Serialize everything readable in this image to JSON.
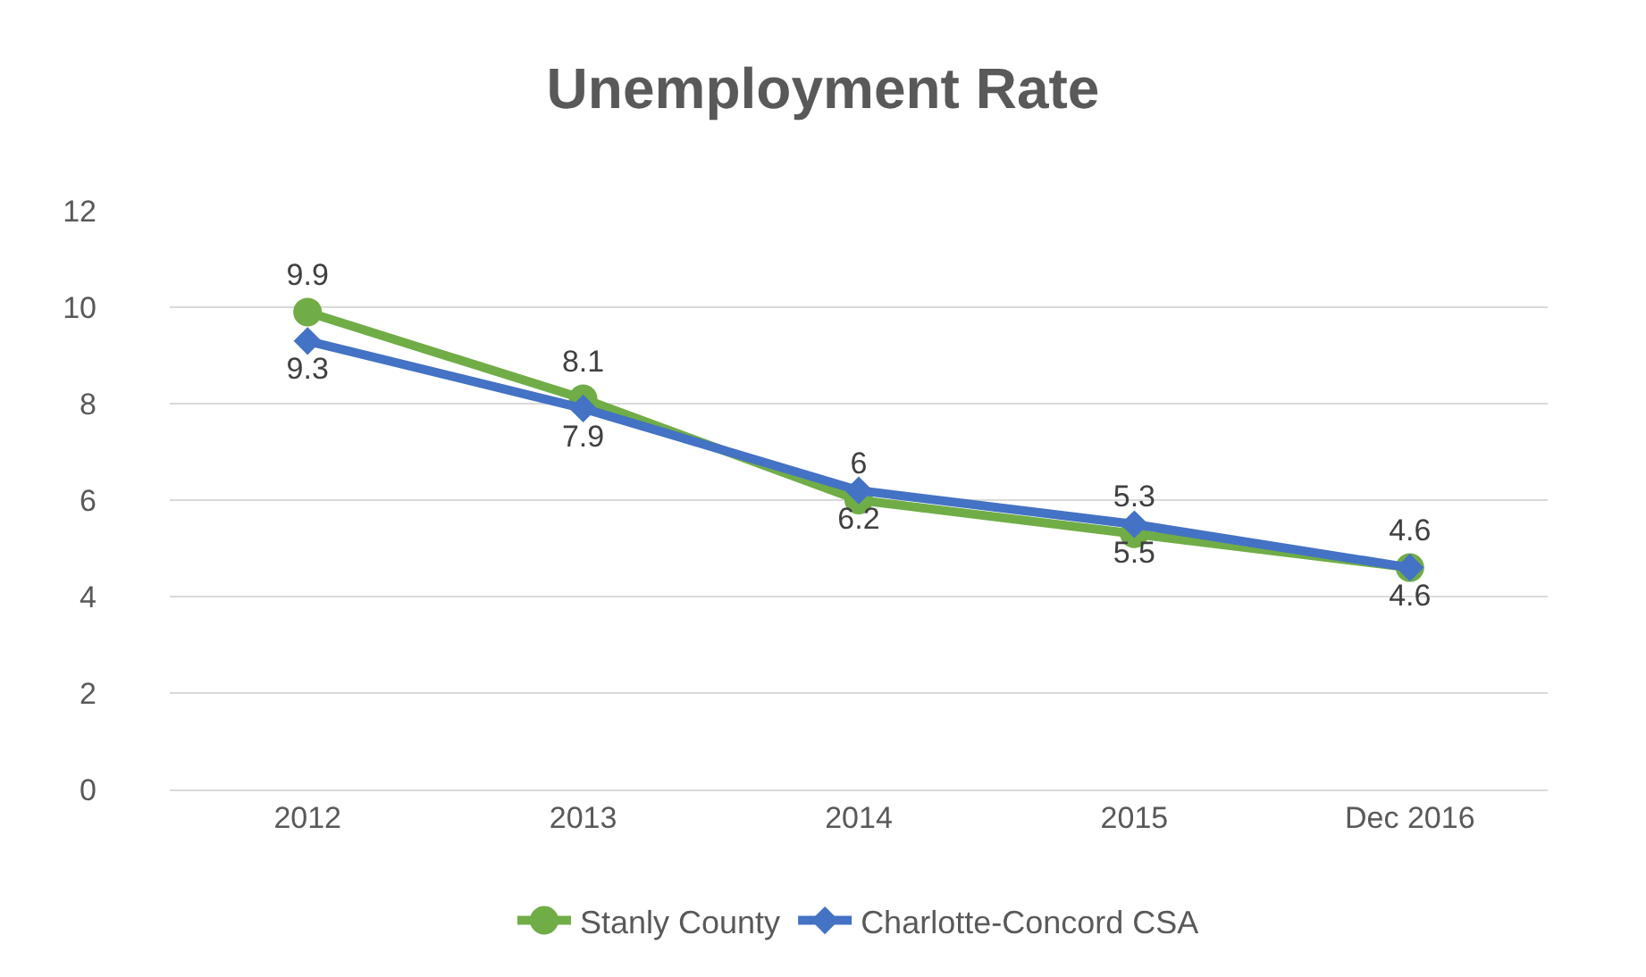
{
  "chart_data": {
    "type": "line",
    "title": "Unemployment Rate",
    "categories": [
      "2012",
      "2013",
      "2014",
      "2015",
      "Dec 2016"
    ],
    "series": [
      {
        "name": "Stanly County",
        "color": "#70ad47",
        "marker": "circle",
        "values": [
          9.9,
          8.1,
          6,
          5.3,
          4.6
        ]
      },
      {
        "name": "Charlotte-Concord CSA",
        "color": "#4472c4",
        "marker": "diamond",
        "values": [
          9.3,
          7.9,
          6.2,
          5.5,
          4.6
        ]
      }
    ],
    "ylim": [
      0,
      12
    ],
    "yticks": [
      0,
      2,
      4,
      6,
      8,
      10,
      12
    ],
    "grid": "y",
    "legend": "bottom",
    "data_labels": true,
    "line_style": "solid"
  }
}
